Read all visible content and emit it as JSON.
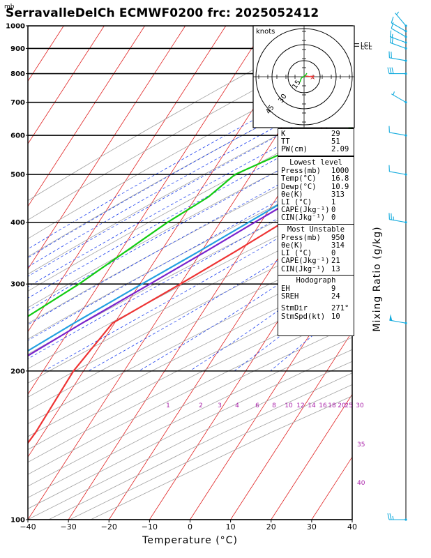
{
  "title": "SerravalleDelCh ECMWF0200  frc: 2025052412",
  "unit_label": "mb",
  "chart_data": {
    "type": "skew-t log-p sounding",
    "xlabel": "Temperature (°C)",
    "ylabel_right": "Mixing Ratio (g/kg)",
    "x_ticks": [
      "−40",
      "−30",
      "−20",
      "−10",
      "0",
      "10",
      "20",
      "30",
      "40"
    ],
    "y_ticks": [
      "100",
      "200",
      "300",
      "400",
      "500",
      "600",
      "700",
      "800",
      "900",
      "1000"
    ],
    "xlim": [
      -40,
      40
    ],
    "ylim": [
      1000,
      100
    ],
    "mixing_ratio_labels": [
      "1",
      "2",
      "3",
      "4",
      "6",
      "8",
      "10",
      "12",
      "14",
      "16",
      "18",
      "20",
      "25",
      "30"
    ],
    "theta_labels": [
      "30",
      "35",
      "40"
    ],
    "lcl_labels": [
      "LCL",
      "LCL"
    ],
    "temperature": [
      {
        "p": 1000,
        "t": 16.8
      },
      {
        "p": 975,
        "t": 14.5
      },
      {
        "p": 950,
        "t": 12.2
      },
      {
        "p": 925,
        "t": 11.0
      },
      {
        "p": 900,
        "t": 10.5
      },
      {
        "p": 850,
        "t": 8.0
      },
      {
        "p": 800,
        "t": 5.5
      },
      {
        "p": 750,
        "t": 3.0
      },
      {
        "p": 700,
        "t": 0.2
      },
      {
        "p": 650,
        "t": -2.8
      },
      {
        "p": 600,
        "t": -6.2
      },
      {
        "p": 550,
        "t": -10.0
      },
      {
        "p": 500,
        "t": -14.2
      },
      {
        "p": 450,
        "t": -19.0
      },
      {
        "p": 400,
        "t": -24.5
      },
      {
        "p": 350,
        "t": -31.5
      },
      {
        "p": 300,
        "t": -40.0
      },
      {
        "p": 250,
        "t": -50.5
      },
      {
        "p": 200,
        "t": -52.5
      },
      {
        "p": 150,
        "t": -52.0
      },
      {
        "p": 100,
        "t": -54.0
      }
    ],
    "dewpoint": [
      {
        "p": 1000,
        "t": 10.9
      },
      {
        "p": 975,
        "t": 9.8
      },
      {
        "p": 950,
        "t": 9.6
      },
      {
        "p": 925,
        "t": 9.6
      },
      {
        "p": 900,
        "t": 9.5
      },
      {
        "p": 850,
        "t": 6.0
      },
      {
        "p": 800,
        "t": 1.5
      },
      {
        "p": 750,
        "t": -3.5
      },
      {
        "p": 700,
        "t": -8.0
      },
      {
        "p": 650,
        "t": -17.0
      },
      {
        "p": 600,
        "t": -27.0
      },
      {
        "p": 550,
        "t": -36.0
      },
      {
        "p": 500,
        "t": -44.0
      },
      {
        "p": 450,
        "t": -47.0
      },
      {
        "p": 400,
        "t": -53.0
      },
      {
        "p": 300,
        "t": -65.0
      },
      {
        "p": 250,
        "t": -74.0
      },
      {
        "p": 200,
        "t": -78.0
      },
      {
        "p": 150,
        "t": -84.0
      },
      {
        "p": 100,
        "t": -95.0
      }
    ],
    "parcel": [
      {
        "p": 1000,
        "t": 16.8
      },
      {
        "p": 950,
        "t": 12.2
      },
      {
        "p": 925,
        "t": 10.0
      },
      {
        "p": 900,
        "t": 9.0
      },
      {
        "p": 850,
        "t": 6.3
      },
      {
        "p": 800,
        "t": 3.5
      },
      {
        "p": 750,
        "t": 0.4
      },
      {
        "p": 700,
        "t": -3.0
      },
      {
        "p": 650,
        "t": -6.8
      },
      {
        "p": 600,
        "t": -10.8
      },
      {
        "p": 550,
        "t": -15.5
      },
      {
        "p": 500,
        "t": -20.8
      },
      {
        "p": 450,
        "t": -26.5
      },
      {
        "p": 400,
        "t": -33.0
      },
      {
        "p": 350,
        "t": -40.5
      },
      {
        "p": 300,
        "t": -49.5
      },
      {
        "p": 250,
        "t": -60.0
      },
      {
        "p": 200,
        "t": -72.0
      },
      {
        "p": 150,
        "t": -86.0
      },
      {
        "p": 120,
        "t": -96.0
      }
    ],
    "parcel_violet": [
      {
        "p": 950,
        "t": 11.8
      },
      {
        "p": 900,
        "t": 9.4
      },
      {
        "p": 850,
        "t": 6.8
      },
      {
        "p": 800,
        "t": 4.0
      },
      {
        "p": 750,
        "t": 1.0
      },
      {
        "p": 700,
        "t": -2.2
      },
      {
        "p": 650,
        "t": -5.8
      },
      {
        "p": 600,
        "t": -9.8
      },
      {
        "p": 550,
        "t": -14.3
      },
      {
        "p": 500,
        "t": -19.5
      },
      {
        "p": 450,
        "t": -25.0
      },
      {
        "p": 400,
        "t": -31.5
      },
      {
        "p": 350,
        "t": -38.8
      },
      {
        "p": 300,
        "t": -47.5
      },
      {
        "p": 250,
        "t": -58.0
      },
      {
        "p": 200,
        "t": -70.0
      },
      {
        "p": 150,
        "t": -84.0
      },
      {
        "p": 120,
        "t": -94.0
      }
    ],
    "winds": [
      {
        "p": 100,
        "dir": 270,
        "spd": 25
      },
      {
        "p": 250,
        "dir": 280,
        "spd": 50
      },
      {
        "p": 400,
        "dir": 280,
        "spd": 25
      },
      {
        "p": 500,
        "dir": 280,
        "spd": 10
      },
      {
        "p": 600,
        "dir": 280,
        "spd": 10
      },
      {
        "p": 700,
        "dir": 300,
        "spd": 5
      },
      {
        "p": 800,
        "dir": 270,
        "spd": 30
      },
      {
        "p": 850,
        "dir": 280,
        "spd": 20
      },
      {
        "p": 900,
        "dir": 290,
        "spd": 20
      },
      {
        "p": 925,
        "dir": 290,
        "spd": 15
      },
      {
        "p": 950,
        "dir": 300,
        "spd": 10
      },
      {
        "p": 975,
        "dir": 300,
        "spd": 10
      },
      {
        "p": 1000,
        "dir": 320,
        "spd": 5
      }
    ],
    "hodograph": {
      "unit": "knots",
      "ring_labels": [
        "15",
        "30",
        "45"
      ]
    }
  },
  "indices": [
    {
      "label": "K",
      "value": "29"
    },
    {
      "label": "TT",
      "value": "51"
    },
    {
      "label": "PW(cm)",
      "value": "2.09"
    }
  ],
  "lowest_level": {
    "header": "Lowest level",
    "rows": [
      {
        "label": "Press(mb)",
        "value": "1000"
      },
      {
        "label": "Temp(°C)",
        "value": "16.8"
      },
      {
        "label": "Dewp(°C)",
        "value": "10.9"
      },
      {
        "label": "θe(K)",
        "value": "313"
      },
      {
        "label": "LI (°C)",
        "value": "1"
      },
      {
        "label": "CAPE(Jkg⁻¹)",
        "value": "0"
      },
      {
        "label": "CIN(Jkg⁻¹)",
        "value": "0"
      }
    ]
  },
  "most_unstable": {
    "header": "Most Unstable",
    "rows": [
      {
        "label": "Press(mb)",
        "value": "950"
      },
      {
        "label": "θe(K)",
        "value": "314"
      },
      {
        "label": "LI (°C)",
        "value": "0"
      },
      {
        "label": "CAPE(Jkg⁻¹)",
        "value": "21"
      },
      {
        "label": "CIN(Jkg⁻¹)",
        "value": "13"
      }
    ]
  },
  "hodograph_box": {
    "header": "Hodograph",
    "rows": [
      {
        "label": "EH",
        "value": "9"
      },
      {
        "label": "SREH",
        "value": "24"
      },
      {
        "label": "StmDir",
        "value": "271°"
      },
      {
        "label": "StmSpd(kt)",
        "value": "10"
      }
    ]
  },
  "colors": {
    "temperature": "#ee3333",
    "dewpoint": "#11cc11",
    "parcel": "#22a0e0",
    "parcel2": "#7a22cc",
    "isotherm": "#e02020",
    "dry_adiabat": "#a0a0a0",
    "moist_adiabat": "#2244ee",
    "mixing_ratio": "#aa22aa",
    "barb": "#11aadd"
  }
}
